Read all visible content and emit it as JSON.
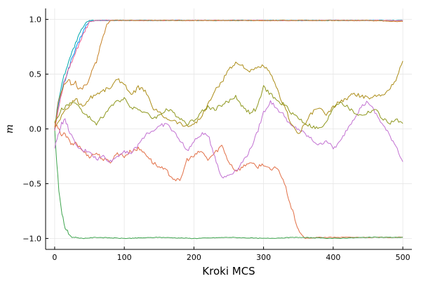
{
  "chart_data": {
    "type": "line",
    "xlabel": "Kroki MCS",
    "ylabel": "m",
    "xlim": [
      -13,
      513
    ],
    "ylim": [
      -1.1,
      1.1
    ],
    "xticks": [
      0,
      100,
      200,
      300,
      400,
      500
    ],
    "yticks": [
      -1.0,
      -0.5,
      0.0,
      0.5,
      1.0
    ],
    "ytick_labels": [
      "−1.0",
      "−0.5",
      "0.0",
      "0.5",
      "1.0"
    ],
    "grid": true,
    "legend": "none",
    "series": [
      {
        "color": "#009af9",
        "x": [
          0,
          5,
          10,
          15,
          20,
          25,
          30,
          35,
          40,
          45,
          50,
          60,
          80,
          100,
          150,
          200,
          250,
          300,
          350,
          400,
          450,
          500
        ],
        "y": [
          0.0,
          0.2,
          0.35,
          0.45,
          0.55,
          0.65,
          0.72,
          0.8,
          0.88,
          0.94,
          0.98,
          0.99,
          0.99,
          0.99,
          0.99,
          0.99,
          0.99,
          0.99,
          0.99,
          0.99,
          0.99,
          0.99
        ]
      },
      {
        "color": "#e26f46",
        "x": [
          0,
          5,
          10,
          15,
          20,
          25,
          30,
          40,
          50,
          60,
          70,
          80,
          90,
          100,
          110,
          120,
          130,
          140,
          150,
          160,
          170,
          180,
          190,
          200,
          210,
          220,
          230,
          240,
          250,
          260,
          270,
          280,
          290,
          300,
          310,
          320,
          330,
          340,
          345,
          350,
          355,
          360,
          380,
          400,
          450,
          500
        ],
        "y": [
          0.05,
          0.0,
          -0.05,
          -0.05,
          -0.1,
          -0.15,
          -0.12,
          -0.2,
          -0.25,
          -0.22,
          -0.28,
          -0.3,
          -0.22,
          -0.25,
          -0.2,
          -0.18,
          -0.22,
          -0.3,
          -0.35,
          -0.38,
          -0.45,
          -0.48,
          -0.28,
          -0.25,
          -0.2,
          -0.28,
          -0.22,
          -0.15,
          -0.3,
          -0.38,
          -0.35,
          -0.3,
          -0.35,
          -0.32,
          -0.38,
          -0.35,
          -0.5,
          -0.72,
          -0.82,
          -0.92,
          -0.97,
          -1.0,
          -0.99,
          -0.99,
          -0.99,
          -0.99
        ]
      },
      {
        "color": "#3da44d",
        "x": [
          0,
          3,
          6,
          9,
          12,
          15,
          20,
          25,
          30,
          40,
          60,
          100,
          150,
          200,
          250,
          300,
          350,
          400,
          450,
          500
        ],
        "y": [
          0.0,
          -0.3,
          -0.55,
          -0.72,
          -0.82,
          -0.9,
          -0.96,
          -0.99,
          -0.99,
          -1.0,
          -0.99,
          -1.0,
          -0.99,
          -1.0,
          -0.99,
          -1.0,
          -0.99,
          -1.0,
          -0.99,
          -0.99
        ]
      },
      {
        "color": "#c271d2",
        "x": [
          0,
          5,
          10,
          15,
          20,
          30,
          40,
          50,
          60,
          70,
          80,
          90,
          100,
          110,
          120,
          130,
          140,
          150,
          160,
          170,
          180,
          190,
          200,
          210,
          220,
          230,
          240,
          250,
          260,
          270,
          280,
          290,
          300,
          310,
          320,
          330,
          340,
          350,
          360,
          370,
          380,
          390,
          400,
          410,
          420,
          430,
          440,
          450,
          460,
          470,
          480,
          490,
          500
        ],
        "y": [
          -0.18,
          -0.05,
          0.05,
          0.08,
          0.0,
          -0.15,
          -0.2,
          -0.2,
          -0.28,
          -0.25,
          -0.3,
          -0.25,
          -0.2,
          -0.22,
          -0.15,
          -0.05,
          -0.02,
          0.02,
          0.05,
          -0.02,
          -0.1,
          -0.2,
          -0.12,
          -0.05,
          -0.05,
          -0.25,
          -0.45,
          -0.42,
          -0.38,
          -0.3,
          -0.2,
          -0.05,
          0.15,
          0.25,
          0.18,
          0.12,
          0.02,
          0.0,
          -0.05,
          -0.1,
          -0.15,
          -0.1,
          -0.18,
          -0.12,
          0.0,
          0.1,
          0.2,
          0.25,
          0.15,
          0.05,
          -0.05,
          -0.15,
          -0.3
        ]
      },
      {
        "color": "#ac8d18",
        "x": [
          0,
          10,
          20,
          30,
          40,
          50,
          60,
          70,
          80,
          90,
          100,
          110,
          120,
          130,
          140,
          150,
          160,
          170,
          180,
          190,
          200,
          210,
          220,
          230,
          240,
          250,
          260,
          270,
          280,
          290,
          300,
          310,
          320,
          330,
          340,
          350,
          360,
          370,
          380,
          390,
          400,
          410,
          420,
          430,
          440,
          450,
          460,
          470,
          480,
          490,
          500
        ],
        "y": [
          0.0,
          0.12,
          0.2,
          0.28,
          0.2,
          0.28,
          0.32,
          0.35,
          0.38,
          0.45,
          0.42,
          0.3,
          0.38,
          0.35,
          0.2,
          0.15,
          0.1,
          0.08,
          0.05,
          0.02,
          0.05,
          0.1,
          0.22,
          0.35,
          0.42,
          0.55,
          0.6,
          0.58,
          0.52,
          0.55,
          0.58,
          0.5,
          0.35,
          0.2,
          0.05,
          -0.05,
          0.05,
          0.15,
          0.2,
          0.12,
          0.2,
          0.25,
          0.28,
          0.32,
          0.3,
          0.28,
          0.3,
          0.32,
          0.35,
          0.45,
          0.62
        ]
      },
      {
        "color": "#00a9ad",
        "x": [
          0,
          5,
          10,
          15,
          20,
          25,
          30,
          35,
          40,
          45,
          50,
          55,
          60,
          80,
          100,
          150,
          200,
          250,
          300,
          350,
          400,
          450,
          500
        ],
        "y": [
          0.0,
          0.25,
          0.4,
          0.52,
          0.62,
          0.7,
          0.78,
          0.85,
          0.92,
          0.97,
          0.99,
          0.99,
          0.99,
          0.99,
          0.99,
          0.99,
          0.99,
          0.99,
          0.99,
          0.99,
          0.99,
          0.99,
          0.99
        ]
      },
      {
        "color": "#ed5d92",
        "x": [
          0,
          5,
          10,
          15,
          20,
          25,
          30,
          35,
          40,
          45,
          50,
          60,
          80,
          100,
          150,
          200,
          250,
          300,
          350,
          400,
          450,
          500
        ],
        "y": [
          0.0,
          0.18,
          0.32,
          0.45,
          0.55,
          0.62,
          0.7,
          0.78,
          0.85,
          0.92,
          0.98,
          0.99,
          0.99,
          0.99,
          0.99,
          0.99,
          0.99,
          0.99,
          0.99,
          0.99,
          0.99,
          0.99
        ]
      },
      {
        "color": "#c68125",
        "x": [
          0,
          5,
          10,
          15,
          20,
          25,
          30,
          35,
          40,
          45,
          50,
          55,
          60,
          65,
          70,
          75,
          80,
          85,
          90,
          100,
          150,
          200,
          250,
          300,
          350,
          400,
          450,
          500
        ],
        "y": [
          0.0,
          0.25,
          0.35,
          0.42,
          0.45,
          0.4,
          0.42,
          0.35,
          0.38,
          0.4,
          0.45,
          0.55,
          0.62,
          0.75,
          0.85,
          0.95,
          0.99,
          0.99,
          0.99,
          0.99,
          0.99,
          0.99,
          0.99,
          0.99,
          0.99,
          0.99,
          0.99,
          0.98
        ]
      },
      {
        "color": "#8e971d",
        "x": [
          0,
          10,
          20,
          30,
          40,
          50,
          60,
          70,
          80,
          90,
          100,
          110,
          120,
          130,
          140,
          150,
          160,
          170,
          180,
          190,
          200,
          210,
          220,
          230,
          240,
          250,
          260,
          270,
          280,
          290,
          300,
          310,
          320,
          330,
          340,
          350,
          360,
          370,
          380,
          390,
          400,
          410,
          420,
          430,
          440,
          450,
          460,
          470,
          480,
          490,
          500
        ],
        "y": [
          0.05,
          0.18,
          0.22,
          0.25,
          0.15,
          0.1,
          0.05,
          0.12,
          0.2,
          0.25,
          0.28,
          0.2,
          0.18,
          0.15,
          0.1,
          0.12,
          0.18,
          0.15,
          0.1,
          0.05,
          0.08,
          0.15,
          0.2,
          0.18,
          0.22,
          0.25,
          0.3,
          0.2,
          0.15,
          0.18,
          0.38,
          0.32,
          0.25,
          0.22,
          0.15,
          0.1,
          0.05,
          0.02,
          0.0,
          0.05,
          0.2,
          0.25,
          0.2,
          0.15,
          0.12,
          0.15,
          0.18,
          0.1,
          0.05,
          0.08,
          0.05
        ]
      }
    ]
  }
}
